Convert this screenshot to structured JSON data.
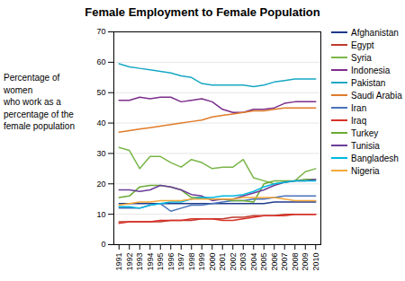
{
  "chart_data": {
    "type": "line",
    "title": "Female Employment to Female Population",
    "ylabel": "Percentage of women\nwho work as a\npercentage of the\nfemale population",
    "x": [
      1991,
      1992,
      1993,
      1994,
      1995,
      1996,
      1997,
      1998,
      1999,
      2000,
      2001,
      2002,
      2003,
      2004,
      2005,
      2006,
      2007,
      2008,
      2009,
      2010
    ],
    "series": [
      {
        "name": "Afghanistan",
        "color": "#1f3a8a",
        "values": [
          13.5,
          13.5,
          13.5,
          13.5,
          13.5,
          13.5,
          13.5,
          13.5,
          13.5,
          13.5,
          13.5,
          13.5,
          13.5,
          13.5,
          13.5,
          14.0,
          14.0,
          14.0,
          14.0,
          14.0
        ]
      },
      {
        "name": "Egypt",
        "color": "#c0392b",
        "values": [
          7.5,
          7.5,
          7.5,
          7.5,
          7.5,
          8.0,
          8.0,
          8.0,
          8.5,
          8.5,
          8.5,
          9.0,
          9.0,
          9.5,
          9.5,
          9.5,
          10.0,
          10.0,
          10.0,
          10.0
        ]
      },
      {
        "name": "Syria",
        "color": "#7ab648",
        "values": [
          32.0,
          31.0,
          25.0,
          29.0,
          29.0,
          27.0,
          25.5,
          28.0,
          27.0,
          25.0,
          25.5,
          25.5,
          28.0,
          22.0,
          21.0,
          20.0,
          20.5,
          21.0,
          24.0,
          25.0
        ]
      },
      {
        "name": "Indonesia",
        "color": "#7b2d8b",
        "values": [
          47.5,
          47.5,
          48.5,
          48.0,
          48.5,
          48.5,
          47.0,
          47.5,
          48.0,
          47.0,
          44.5,
          43.5,
          43.5,
          44.5,
          44.5,
          45.0,
          46.5,
          47.0,
          47.0,
          47.0
        ]
      },
      {
        "name": "Pakistan",
        "color": "#17a8c4",
        "values": [
          59.5,
          58.5,
          58.0,
          57.5,
          57.0,
          56.5,
          55.5,
          55.0,
          53.0,
          52.5,
          52.5,
          52.5,
          52.5,
          52.0,
          52.5,
          53.5,
          54.0,
          54.5,
          54.5,
          54.5
        ]
      },
      {
        "name": "Saudi Arabia",
        "color": "#e07b29",
        "values": [
          37.0,
          37.5,
          38.0,
          38.5,
          39.0,
          39.5,
          40.0,
          40.5,
          41.0,
          42.0,
          42.5,
          43.0,
          43.5,
          44.0,
          44.0,
          44.5,
          45.0,
          45.0,
          45.0,
          45.0
        ]
      },
      {
        "name": "Iran",
        "color": "#4a73ba",
        "values": [
          12.0,
          12.0,
          12.0,
          13.0,
          13.5,
          11.0,
          12.0,
          13.0,
          13.0,
          13.5,
          14.0,
          14.5,
          14.5,
          15.0,
          15.0,
          15.5,
          16.0,
          16.0,
          16.0,
          16.0
        ]
      },
      {
        "name": "Iraq",
        "color": "#d73027",
        "values": [
          7.0,
          7.5,
          7.5,
          7.5,
          8.0,
          8.0,
          8.0,
          8.5,
          8.5,
          8.5,
          8.0,
          8.0,
          8.5,
          9.0,
          9.5,
          9.5,
          9.5,
          10.0,
          10.0,
          10.0
        ]
      },
      {
        "name": "Turkey",
        "color": "#6aaa35",
        "values": [
          15.5,
          16.0,
          19.0,
          19.5,
          19.5,
          19.0,
          18.0,
          15.5,
          15.5,
          15.0,
          15.0,
          14.5,
          14.5,
          14.0,
          20.0,
          21.0,
          21.0,
          21.0,
          21.5,
          21.5
        ]
      },
      {
        "name": "Tunisia",
        "color": "#6a3d9a",
        "values": [
          18.0,
          18.0,
          17.5,
          18.0,
          19.5,
          19.0,
          18.0,
          16.5,
          16.0,
          14.5,
          15.0,
          15.0,
          16.0,
          17.0,
          18.0,
          19.5,
          20.5,
          21.0,
          21.0,
          21.5
        ]
      },
      {
        "name": "Bangladesh",
        "color": "#00b8e0",
        "values": [
          12.5,
          12.5,
          12.0,
          13.0,
          13.5,
          14.0,
          14.0,
          15.0,
          15.5,
          15.5,
          16.0,
          16.0,
          16.5,
          17.5,
          19.0,
          20.0,
          20.5,
          21.0,
          21.0,
          21.0
        ]
      },
      {
        "name": "Nigeria",
        "color": "#f4a83a",
        "values": [
          13.0,
          13.5,
          14.0,
          14.0,
          14.5,
          14.5,
          14.5,
          15.0,
          15.0,
          15.0,
          15.0,
          15.0,
          15.5,
          15.5,
          15.5,
          15.5,
          15.0,
          14.5,
          14.5,
          14.5
        ]
      }
    ],
    "xlim": [
      1990.5,
      2010.5
    ],
    "xticks": [
      1991,
      1992,
      1993,
      1994,
      1995,
      1996,
      1997,
      1998,
      1999,
      2000,
      2001,
      2002,
      2003,
      2004,
      2005,
      2006,
      2007,
      2008,
      2009,
      2010
    ],
    "ylim": [
      0,
      70
    ],
    "yticks": [
      0,
      10,
      20,
      30,
      40,
      50,
      60,
      70
    ],
    "grid": true,
    "legend": "right"
  }
}
